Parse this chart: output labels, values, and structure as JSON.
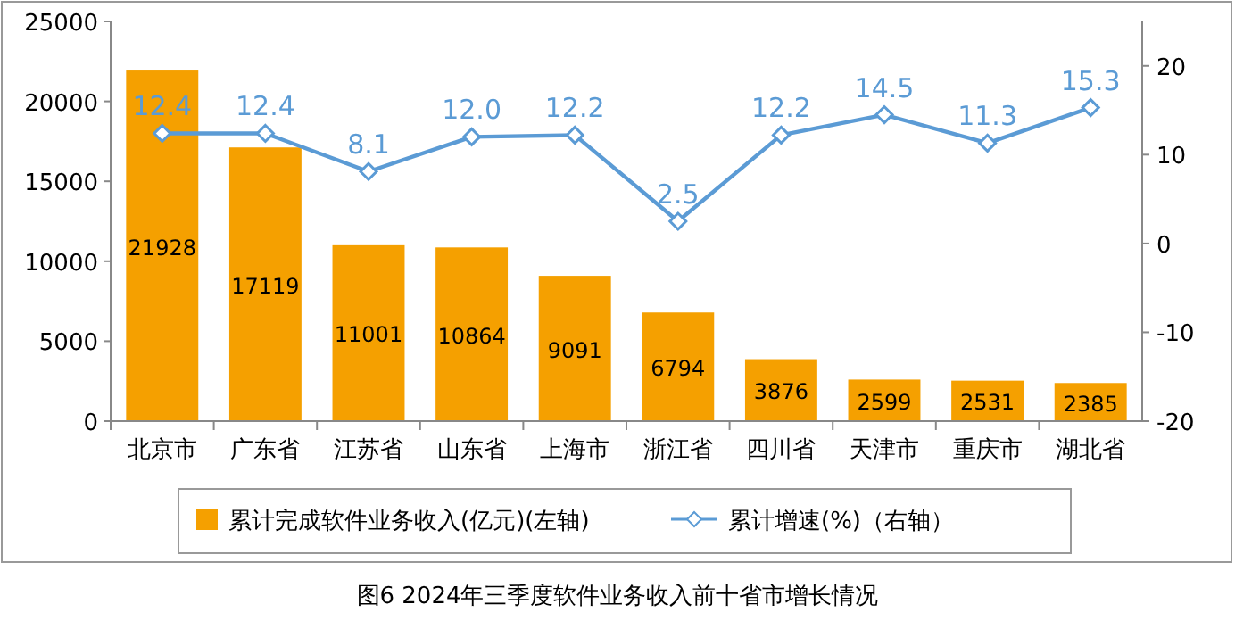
{
  "chart_data": {
    "type": "bar",
    "categories": [
      "北京市",
      "广东省",
      "江苏省",
      "山东省",
      "上海市",
      "浙江省",
      "四川省",
      "天津市",
      "重庆市",
      "湖北省"
    ],
    "series": [
      {
        "name": "累计完成软件业务收入(亿元)(左轴)",
        "color": "#f5a000",
        "values": [
          21928,
          17119,
          11001,
          10864,
          9091,
          6794,
          3876,
          2599,
          2531,
          2385
        ]
      },
      {
        "name": "累计增速(%)（右轴）",
        "type": "line",
        "axis": "y2",
        "color": "#5b9bd5",
        "values": [
          12.4,
          12.4,
          8.1,
          12.0,
          12.2,
          2.5,
          12.2,
          14.5,
          11.3,
          15.3
        ],
        "value_labels": [
          "12.4",
          "12.4",
          "8.1",
          "12.0",
          "12.2",
          "2.5",
          "12.2",
          "14.5",
          "11.3",
          "15.3"
        ]
      }
    ],
    "ylim": [
      0,
      25000
    ],
    "yticks": [
      0,
      5000,
      10000,
      15000,
      20000,
      25000
    ],
    "y2lim": [
      -20,
      25
    ],
    "y2ticks": [
      -20,
      -10,
      0,
      10,
      20
    ],
    "data_labels": true,
    "marker": "diamond",
    "legend": "bottom",
    "grid": false,
    "annotations": [
      "图6   2024年三季度软件业务收入前十省市增长情况"
    ]
  }
}
